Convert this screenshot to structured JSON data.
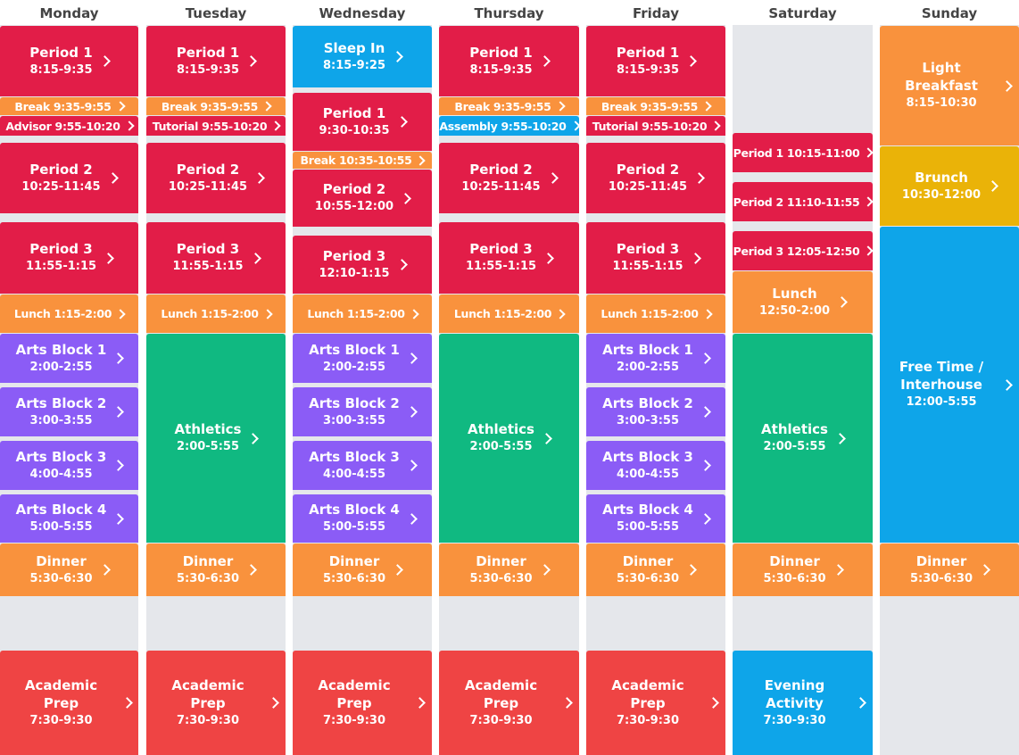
{
  "days": [
    {
      "name": "Monday",
      "blocks": [
        {
          "title": "Period 1",
          "time": "8:15-9:35"
        },
        {
          "label": "Break 9:35-9:55"
        },
        {
          "label": "Advisor 9:55-10:20"
        },
        {
          "title": "Period 2",
          "time": "10:25-11:45"
        },
        {
          "title": "Period 3",
          "time": "11:55-1:15"
        },
        {
          "label": "Lunch 1:15-2:00"
        },
        {
          "title": "Arts Block 1",
          "time": "2:00-2:55"
        },
        {
          "title": "Arts Block 2",
          "time": "3:00-3:55"
        },
        {
          "title": "Arts Block 3",
          "time": "4:00-4:55"
        },
        {
          "title": "Arts Block 4",
          "time": "5:00-5:55"
        },
        {
          "title": "Dinner",
          "time": "5:30-6:30"
        },
        {
          "title": "Academic Prep",
          "time": "7:30-9:30"
        }
      ]
    },
    {
      "name": "Tuesday",
      "blocks": [
        {
          "title": "Period 1",
          "time": "8:15-9:35"
        },
        {
          "label": "Break 9:35-9:55"
        },
        {
          "label": "Tutorial 9:55-10:20"
        },
        {
          "title": "Period 2",
          "time": "10:25-11:45"
        },
        {
          "title": "Period 3",
          "time": "11:55-1:15"
        },
        {
          "label": "Lunch 1:15-2:00"
        },
        {
          "title": "Athletics",
          "time": "2:00-5:55"
        },
        {
          "title": "Dinner",
          "time": "5:30-6:30"
        },
        {
          "title": "Academic Prep",
          "time": "7:30-9:30"
        }
      ]
    },
    {
      "name": "Wednesday",
      "blocks": [
        {
          "title": "Sleep In",
          "time": "8:15-9:25"
        },
        {
          "title": "Period 1",
          "time": "9:30-10:35"
        },
        {
          "label": "Break 10:35-10:55"
        },
        {
          "title": "Period 2",
          "time": "10:55-12:00"
        },
        {
          "title": "Period 3",
          "time": "12:10-1:15"
        },
        {
          "label": "Lunch 1:15-2:00"
        },
        {
          "title": "Arts Block 1",
          "time": "2:00-2:55"
        },
        {
          "title": "Arts Block 2",
          "time": "3:00-3:55"
        },
        {
          "title": "Arts Block 3",
          "time": "4:00-4:55"
        },
        {
          "title": "Arts Block 4",
          "time": "5:00-5:55"
        },
        {
          "title": "Dinner",
          "time": "5:30-6:30"
        },
        {
          "title": "Academic Prep",
          "time": "7:30-9:30"
        }
      ]
    },
    {
      "name": "Thursday",
      "blocks": [
        {
          "title": "Period 1",
          "time": "8:15-9:35"
        },
        {
          "label": "Break 9:35-9:55"
        },
        {
          "label": "Assembly 9:55-10:20"
        },
        {
          "title": "Period 2",
          "time": "10:25-11:45"
        },
        {
          "title": "Period 3",
          "time": "11:55-1:15"
        },
        {
          "label": "Lunch 1:15-2:00"
        },
        {
          "title": "Athletics",
          "time": "2:00-5:55"
        },
        {
          "title": "Dinner",
          "time": "5:30-6:30"
        },
        {
          "title": "Academic Prep",
          "time": "7:30-9:30"
        }
      ]
    },
    {
      "name": "Friday",
      "blocks": [
        {
          "title": "Period 1",
          "time": "8:15-9:35"
        },
        {
          "label": "Break 9:35-9:55"
        },
        {
          "label": "Tutorial 9:55-10:20"
        },
        {
          "title": "Period 2",
          "time": "10:25-11:45"
        },
        {
          "title": "Period 3",
          "time": "11:55-1:15"
        },
        {
          "label": "Lunch 1:15-2:00"
        },
        {
          "title": "Arts Block 1",
          "time": "2:00-2:55"
        },
        {
          "title": "Arts Block 2",
          "time": "3:00-3:55"
        },
        {
          "title": "Arts Block 3",
          "time": "4:00-4:55"
        },
        {
          "title": "Arts Block 4",
          "time": "5:00-5:55"
        },
        {
          "title": "Dinner",
          "time": "5:30-6:30"
        },
        {
          "title": "Academic Prep",
          "time": "7:30-9:30"
        }
      ]
    },
    {
      "name": "Saturday",
      "blocks": [
        {
          "label": "Period 1 10:15-11:00"
        },
        {
          "label": "Period 2 11:10-11:55"
        },
        {
          "label": "Period 3 12:05-12:50"
        },
        {
          "title": "Lunch",
          "time": "12:50-2:00"
        },
        {
          "title": "Athletics",
          "time": "2:00-5:55"
        },
        {
          "title": "Dinner",
          "time": "5:30-6:30"
        },
        {
          "title": "Evening Activity",
          "time": "7:30-9:30"
        }
      ]
    },
    {
      "name": "Sunday",
      "blocks": [
        {
          "title": "Light Breakfast",
          "time": "8:15-10:30"
        },
        {
          "title": "Brunch",
          "time": "10:30-12:00"
        },
        {
          "title": "Free Time / Interhouse",
          "time": "12:00-5:55"
        },
        {
          "title": "Dinner",
          "time": "5:30-6:30"
        }
      ]
    }
  ]
}
